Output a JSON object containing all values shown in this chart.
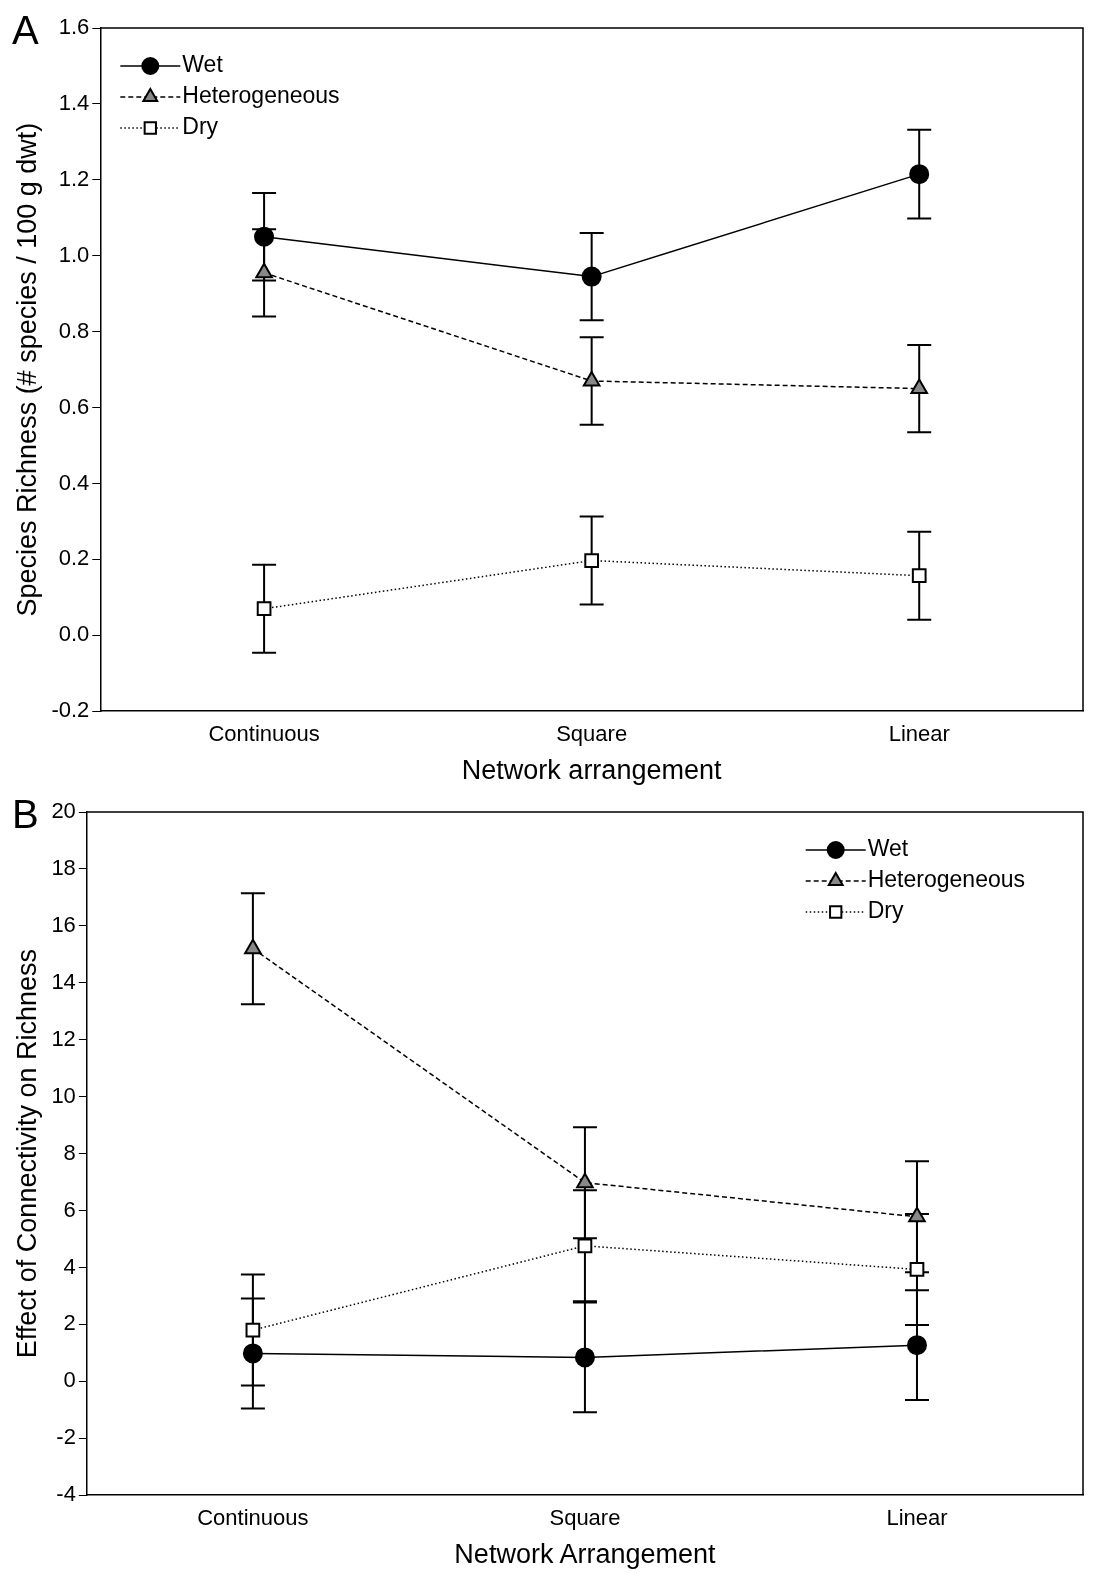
{
  "chart_data": [
    {
      "type": "line",
      "annotations": [
        "A"
      ],
      "xlabel": "Network arrangement",
      "ylabel": "Species Richness (# species / 100 g dwt)",
      "categories": [
        "Continuous",
        "Square",
        "Linear"
      ],
      "ylim": [
        -0.2,
        1.6
      ],
      "yticks": [
        {
          "value": -0.2,
          "label": "-0.2"
        },
        {
          "value": 0,
          "label": "0.0"
        },
        {
          "value": 0.2,
          "label": "0.2"
        },
        {
          "value": 0.4,
          "label": "0.4"
        },
        {
          "value": 0.6,
          "label": "0.6"
        },
        {
          "value": 0.8,
          "label": "0.8"
        },
        {
          "value": 1,
          "label": "1.0"
        },
        {
          "value": 1.2,
          "label": "1.2"
        },
        {
          "value": 1.4,
          "label": "1.4"
        },
        {
          "value": 1.6,
          "label": "1.6"
        }
      ],
      "legend": "top left",
      "series": [
        {
          "name": "Wet",
          "color": "#000000",
          "marker": "circle",
          "line_style": "solid",
          "values": [
            1.05,
            0.945,
            1.215
          ],
          "errors": [
            0.115,
            0.115,
            0.117
          ]
        },
        {
          "name": "Heterogeneous",
          "color": "#888888",
          "marker": "triangle",
          "line_style": "dashed",
          "values": [
            0.955,
            0.67,
            0.65
          ],
          "errors": [
            0.115,
            0.115,
            0.115
          ]
        },
        {
          "name": "Dry",
          "color": "#ffffff",
          "marker": "square",
          "line_style": "dotted",
          "values": [
            0.07,
            0.197,
            0.157
          ],
          "errors": [
            0.116,
            0.116,
            0.116
          ]
        }
      ]
    },
    {
      "type": "line",
      "annotations": [
        "B"
      ],
      "xlabel": "Network Arrangement",
      "ylabel": "Effect of Connectivity on Richness",
      "categories": [
        "Continuous",
        "Square",
        "Linear"
      ],
      "ylim": [
        -4,
        20
      ],
      "yticks": [
        -4,
        -2,
        0,
        2,
        4,
        6,
        8,
        10,
        12,
        14,
        16,
        18,
        20
      ],
      "legend": "top right",
      "series": [
        {
          "name": "Wet",
          "color": "#000000",
          "marker": "circle",
          "line_style": "solid",
          "values": [
            0.98,
            0.84,
            1.27
          ],
          "errors": [
            1.93,
            1.93,
            1.93
          ]
        },
        {
          "name": "Heterogeneous",
          "color": "#888888",
          "marker": "triangle",
          "line_style": "dashed",
          "values": [
            15.2,
            6.98,
            5.78
          ],
          "errors": [
            1.95,
            1.95,
            1.95
          ]
        },
        {
          "name": "Dry",
          "color": "#ffffff",
          "marker": "square",
          "line_style": "dotted",
          "values": [
            1.8,
            4.76,
            3.93
          ],
          "errors": [
            1.95,
            1.95,
            1.95
          ]
        }
      ]
    }
  ]
}
